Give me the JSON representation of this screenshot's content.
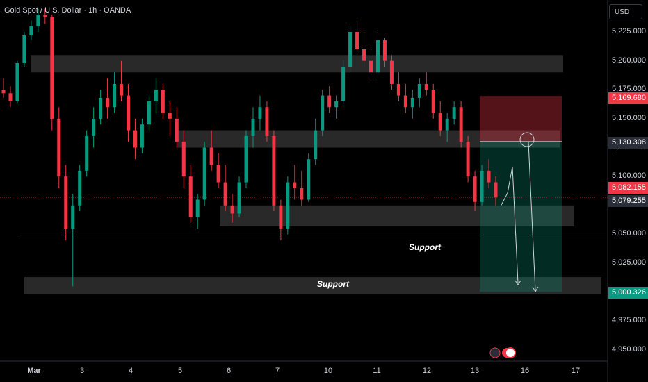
{
  "header": {
    "symbol_title": "Gold Spot / U.S. Dollar · 1h · OANDA"
  },
  "currency_button": {
    "label": "USD"
  },
  "price_tags": {
    "stop": {
      "label": "5,169.680",
      "color": "#f23645"
    },
    "entry": {
      "label": "5,130.308",
      "color": "#2a2e39"
    },
    "current": {
      "label": "5,082.155",
      "color": "#f23645"
    },
    "prev_close": {
      "label": "5,079.255",
      "color": "#2a2e39"
    },
    "target": {
      "label": "5,000.326",
      "color": "#089981"
    }
  },
  "annotations": {
    "support_upper": "Support",
    "support_lower": "Support"
  },
  "colors": {
    "up": "#089981",
    "down": "#f23645",
    "zone": "#4a4a4a",
    "risk": "#f23645",
    "reward": "#089981",
    "line": "#ffffff"
  },
  "chart_data": {
    "type": "candlestick",
    "y_axis": {
      "ticks": [
        "5,225.000",
        "5,200.000",
        "5,175.000",
        "5,150.000",
        "5,125.000",
        "5,100.000",
        "5,050.000",
        "5,025.000",
        "4,975.000",
        "4,950.000"
      ],
      "ylim": [
        4940,
        5245
      ]
    },
    "x_axis": {
      "tick_labels": [
        "Mar",
        "3",
        "4",
        "5",
        "6",
        "7",
        "10",
        "11",
        "12",
        "13",
        "16",
        "17"
      ]
    },
    "ohlc_hourly_approx": [
      [
        5175,
        5185,
        5168,
        5172
      ],
      [
        5172,
        5178,
        5160,
        5165
      ],
      [
        5165,
        5200,
        5163,
        5198
      ],
      [
        5198,
        5225,
        5195,
        5222
      ],
      [
        5222,
        5235,
        5218,
        5230
      ],
      [
        5230,
        5245,
        5225,
        5240
      ],
      [
        5240,
        5245,
        5232,
        5238
      ],
      [
        5238,
        5240,
        5140,
        5150
      ],
      [
        5150,
        5160,
        5090,
        5100
      ],
      [
        5100,
        5110,
        5045,
        5055
      ],
      [
        5055,
        5085,
        5005,
        5075
      ],
      [
        5075,
        5110,
        5070,
        5105
      ],
      [
        5105,
        5140,
        5100,
        5135
      ],
      [
        5135,
        5160,
        5125,
        5150
      ],
      [
        5150,
        5175,
        5145,
        5168
      ],
      [
        5168,
        5185,
        5150,
        5160
      ],
      [
        5160,
        5190,
        5155,
        5180
      ],
      [
        5180,
        5200,
        5165,
        5170
      ],
      [
        5170,
        5180,
        5130,
        5140
      ],
      [
        5140,
        5150,
        5115,
        5125
      ],
      [
        5125,
        5150,
        5120,
        5145
      ],
      [
        5145,
        5170,
        5140,
        5165
      ],
      [
        5165,
        5185,
        5155,
        5175
      ],
      [
        5175,
        5180,
        5150,
        5155
      ],
      [
        5155,
        5165,
        5135,
        5150
      ],
      [
        5150,
        5160,
        5125,
        5130
      ],
      [
        5130,
        5140,
        5090,
        5100
      ],
      [
        5100,
        5110,
        5060,
        5065
      ],
      [
        5065,
        5085,
        5055,
        5080
      ],
      [
        5080,
        5130,
        5075,
        5125
      ],
      [
        5125,
        5140,
        5105,
        5110
      ],
      [
        5110,
        5120,
        5090,
        5095
      ],
      [
        5095,
        5110,
        5070,
        5075
      ],
      [
        5075,
        5085,
        5060,
        5068
      ],
      [
        5068,
        5100,
        5065,
        5095
      ],
      [
        5095,
        5140,
        5090,
        5135
      ],
      [
        5135,
        5160,
        5125,
        5150
      ],
      [
        5150,
        5170,
        5140,
        5160
      ],
      [
        5160,
        5165,
        5130,
        5135
      ],
      [
        5135,
        5140,
        5070,
        5075
      ],
      [
        5075,
        5080,
        5045,
        5055
      ],
      [
        5055,
        5100,
        5050,
        5095
      ],
      [
        5095,
        5110,
        5080,
        5090
      ],
      [
        5090,
        5105,
        5075,
        5080
      ],
      [
        5080,
        5120,
        5078,
        5115
      ],
      [
        5115,
        5150,
        5110,
        5140
      ],
      [
        5140,
        5175,
        5135,
        5170
      ],
      [
        5170,
        5178,
        5155,
        5160
      ],
      [
        5160,
        5170,
        5150,
        5165
      ],
      [
        5165,
        5200,
        5160,
        5195
      ],
      [
        5195,
        5230,
        5190,
        5225
      ],
      [
        5225,
        5235,
        5205,
        5210
      ],
      [
        5210,
        5225,
        5195,
        5200
      ],
      [
        5200,
        5210,
        5185,
        5190
      ],
      [
        5190,
        5225,
        5185,
        5218
      ],
      [
        5218,
        5220,
        5195,
        5200
      ],
      [
        5200,
        5205,
        5175,
        5180
      ],
      [
        5180,
        5190,
        5165,
        5170
      ],
      [
        5170,
        5180,
        5155,
        5160
      ],
      [
        5160,
        5175,
        5150,
        5168
      ],
      [
        5168,
        5185,
        5160,
        5180
      ],
      [
        5180,
        5190,
        5170,
        5175
      ],
      [
        5175,
        5180,
        5150,
        5155
      ],
      [
        5155,
        5165,
        5135,
        5140
      ],
      [
        5140,
        5155,
        5130,
        5150
      ],
      [
        5150,
        5165,
        5145,
        5160
      ],
      [
        5160,
        5165,
        5125,
        5130
      ],
      [
        5130,
        5135,
        5095,
        5100
      ],
      [
        5100,
        5105,
        5070,
        5078
      ],
      [
        5078,
        5110,
        5075,
        5105
      ],
      [
        5105,
        5115,
        5090,
        5095
      ],
      [
        5095,
        5100,
        5075,
        5082
      ]
    ],
    "horizontal_lines": [
      5047
    ],
    "zones": [
      {
        "low": 5190,
        "high": 5205
      },
      {
        "low": 5125,
        "high": 5140
      },
      {
        "low": 5057,
        "high": 5075
      },
      {
        "low": 4998,
        "high": 5013
      }
    ],
    "position": {
      "stop": 5169.68,
      "entry": 5130.308,
      "target": 5000.326
    }
  }
}
